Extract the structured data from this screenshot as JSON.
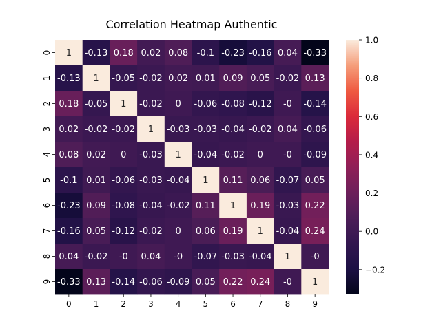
{
  "chart_data": {
    "type": "heatmap",
    "title": "Correlation Heatmap Authentic",
    "xlabel": "",
    "ylabel": "",
    "x_categories": [
      "0",
      "1",
      "2",
      "3",
      "4",
      "5",
      "6",
      "7",
      "8",
      "9"
    ],
    "y_categories": [
      "0",
      "1",
      "2",
      "3",
      "4",
      "5",
      "6",
      "7",
      "8",
      "9"
    ],
    "values": [
      [
        1,
        -0.13,
        0.18,
        0.02,
        0.08,
        -0.1,
        -0.23,
        -0.16,
        0.04,
        -0.33
      ],
      [
        -0.13,
        1,
        -0.05,
        -0.02,
        0.02,
        0.01,
        0.09,
        0.05,
        -0.02,
        0.13
      ],
      [
        0.18,
        -0.05,
        1,
        -0.02,
        0,
        -0.06,
        -0.08,
        -0.12,
        -0.0,
        -0.14
      ],
      [
        0.02,
        -0.02,
        -0.02,
        1,
        -0.03,
        -0.03,
        -0.04,
        -0.02,
        0.04,
        -0.06
      ],
      [
        0.08,
        0.02,
        0,
        -0.03,
        1,
        -0.04,
        -0.02,
        0,
        -0.0,
        -0.09
      ],
      [
        -0.1,
        0.01,
        -0.06,
        -0.03,
        -0.04,
        1,
        0.11,
        0.06,
        -0.07,
        0.05
      ],
      [
        -0.23,
        0.09,
        -0.08,
        -0.04,
        -0.02,
        0.11,
        1,
        0.19,
        -0.03,
        0.22
      ],
      [
        -0.16,
        0.05,
        -0.12,
        -0.02,
        0,
        0.06,
        0.19,
        1,
        -0.04,
        0.24
      ],
      [
        0.04,
        -0.02,
        -0.0,
        0.04,
        -0.0,
        -0.07,
        -0.03,
        -0.04,
        1,
        -0.0
      ],
      [
        -0.33,
        0.13,
        -0.14,
        -0.06,
        -0.09,
        0.05,
        0.22,
        0.24,
        -0.0,
        1
      ]
    ],
    "annotations": [
      [
        "1",
        "-0.13",
        "0.18",
        "0.02",
        "0.08",
        "-0.1",
        "-0.23",
        "-0.16",
        "0.04",
        "-0.33"
      ],
      [
        "-0.13",
        "1",
        "-0.05",
        "-0.02",
        "0.02",
        "0.01",
        "0.09",
        "0.05",
        "-0.02",
        "0.13"
      ],
      [
        "0.18",
        "-0.05",
        "1",
        "-0.02",
        "0",
        "-0.06",
        "-0.08",
        "-0.12",
        "-0",
        "-0.14"
      ],
      [
        "0.02",
        "-0.02",
        "-0.02",
        "1",
        "-0.03",
        "-0.03",
        "-0.04",
        "-0.02",
        "0.04",
        "-0.06"
      ],
      [
        "0.08",
        "0.02",
        "0",
        "-0.03",
        "1",
        "-0.04",
        "-0.02",
        "0",
        "-0",
        "-0.09"
      ],
      [
        "-0.1",
        "0.01",
        "-0.06",
        "-0.03",
        "-0.04",
        "1",
        "0.11",
        "0.06",
        "-0.07",
        "0.05"
      ],
      [
        "-0.23",
        "0.09",
        "-0.08",
        "-0.04",
        "-0.02",
        "0.11",
        "1",
        "0.19",
        "-0.03",
        "0.22"
      ],
      [
        "-0.16",
        "0.05",
        "-0.12",
        "-0.02",
        "0",
        "0.06",
        "0.19",
        "1",
        "-0.04",
        "0.24"
      ],
      [
        "0.04",
        "-0.02",
        "-0",
        "0.04",
        "-0",
        "-0.07",
        "-0.03",
        "-0.04",
        "1",
        "-0"
      ],
      [
        "-0.33",
        "0.13",
        "-0.14",
        "-0.06",
        "-0.09",
        "0.05",
        "0.22",
        "0.24",
        "-0",
        "1"
      ]
    ],
    "color_scale": {
      "name": "rocket",
      "vmin": -0.33,
      "vmax": 1.0,
      "ticks": [
        1.0,
        0.8,
        0.6,
        0.4,
        0.2,
        0.0,
        -0.2
      ],
      "tick_labels": [
        "1.0",
        "0.8",
        "0.6",
        "0.4",
        "0.2",
        "0.0",
        "−0.2"
      ]
    },
    "grid": false,
    "legend": "colorbar-right"
  }
}
